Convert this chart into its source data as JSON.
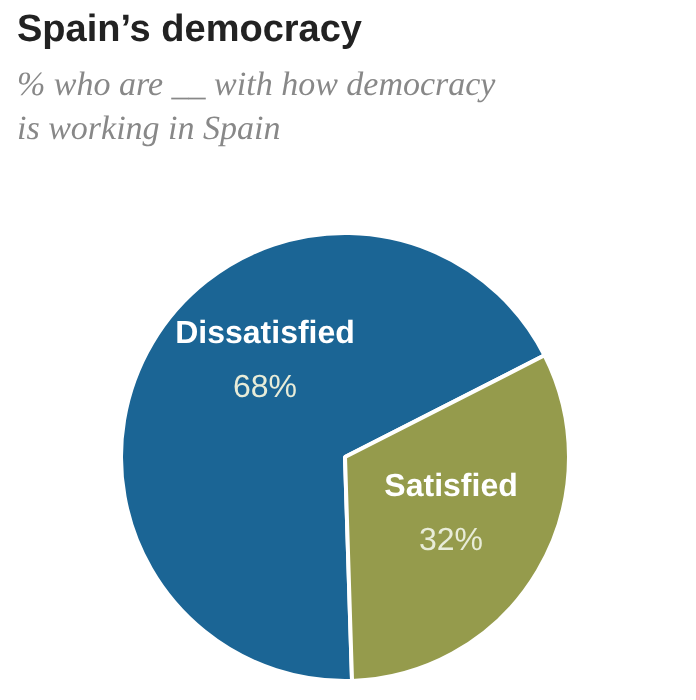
{
  "chart_data": {
    "type": "pie",
    "title": "Spain’s democracy",
    "subtitle": "% who are __ with how democracy is working in Spain",
    "categories": [
      "Dissatisfied",
      "Satisfied"
    ],
    "values": [
      68,
      32
    ],
    "colors": [
      "#1b6595",
      "#959b4c"
    ],
    "value_labels": [
      "68%",
      "32%"
    ]
  }
}
